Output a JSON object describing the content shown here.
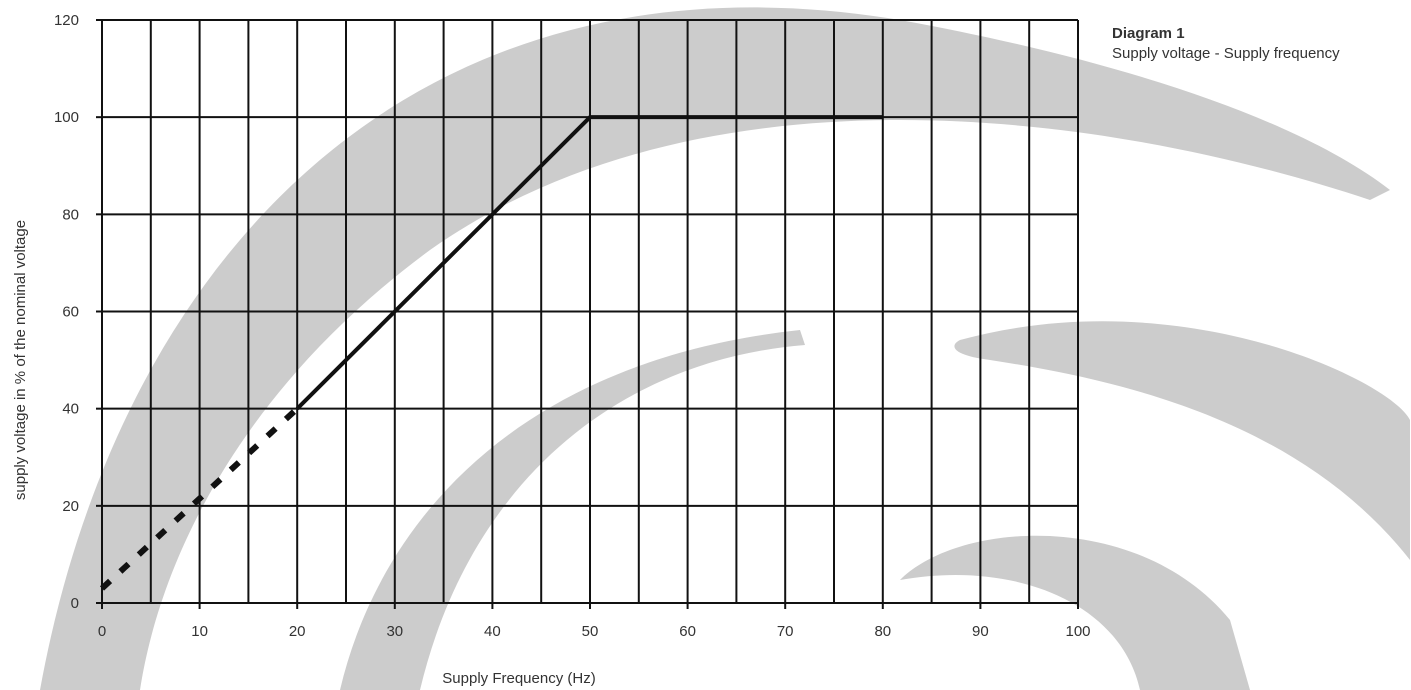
{
  "chart_data": {
    "type": "line",
    "title": "Diagram 1",
    "subtitle": "Supply voltage - Supply frequency",
    "xlabel": "Supply Frequency (Hz)",
    "ylabel": "supply voltage in % of the nominal voltage",
    "xlim": [
      0,
      100
    ],
    "ylim": [
      0,
      120
    ],
    "x_ticks": [
      0,
      10,
      20,
      30,
      40,
      50,
      60,
      70,
      80,
      90,
      100
    ],
    "y_ticks": [
      0,
      20,
      40,
      60,
      80,
      100,
      120
    ],
    "x_minor_step": 5,
    "grid": true,
    "series": [
      {
        "style": "dotted",
        "color": "#111111",
        "x": [
          0,
          20
        ],
        "y": [
          3,
          40
        ]
      },
      {
        "style": "solid",
        "color": "#111111",
        "x": [
          20,
          50,
          80
        ],
        "y": [
          40,
          100,
          100
        ]
      }
    ]
  },
  "colors": {
    "grid": "#111111",
    "watermark": "#cccccc",
    "text": "#333333"
  }
}
